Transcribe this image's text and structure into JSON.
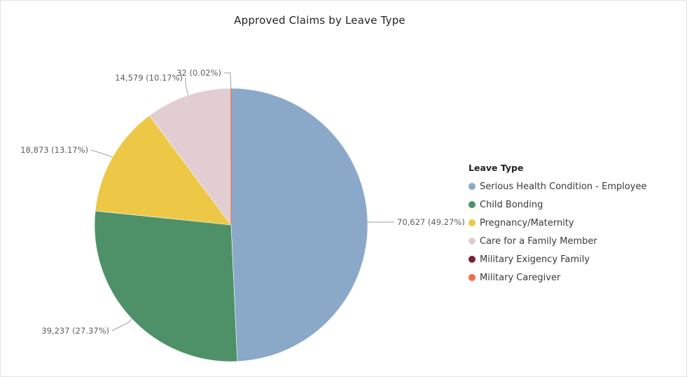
{
  "chart_data": {
    "type": "pie",
    "title": "Approved Claims by Leave Type",
    "legend_title": "Leave Type",
    "legend_position": "right",
    "series": [
      {
        "name": "Serious Health Condition - Employee",
        "value": 70627,
        "label": "70,627 (49.27%)",
        "color": "#8aa8c8"
      },
      {
        "name": "Child Bonding",
        "value": 39237,
        "label": "39,237 (27.37%)",
        "color": "#4e9168"
      },
      {
        "name": "Pregnancy/Maternity",
        "value": 18873,
        "label": "18,873 (13.17%)",
        "color": "#ecc846"
      },
      {
        "name": "Care for a Family Member",
        "value": 14579,
        "label": "14,579 (10.17%)",
        "color": "#e2cdd2"
      },
      {
        "name": "Military Exigency Family",
        "value": 0,
        "label": "",
        "color": "#7b1e2f"
      },
      {
        "name": "Military Caregiver",
        "value": 32,
        "label": "32 (0.02%)",
        "color": "#f26b4b"
      }
    ]
  }
}
